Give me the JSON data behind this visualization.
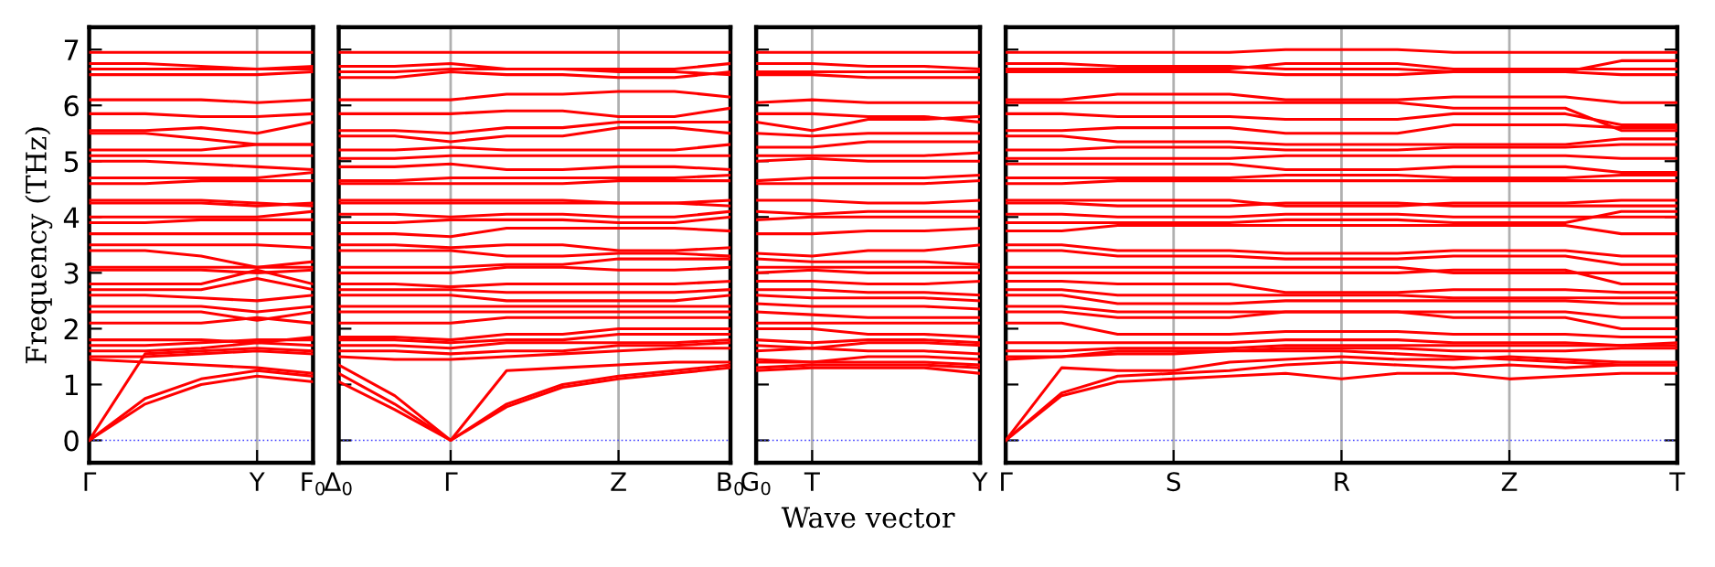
{
  "chart_data": [
    {
      "type": "line",
      "ylabel": "Frequency (THz)",
      "categories": [
        "Γ",
        null,
        null,
        "Y",
        "F$_{0}$"
      ],
      "ylim": [
        -0.4,
        7.4
      ],
      "yticks": [
        0,
        1,
        2,
        3,
        4,
        5,
        6,
        7
      ],
      "line_style": "solid",
      "ref_lines": [
        {
          "axis": "y",
          "value": 0,
          "color": "#4040ff",
          "line_style": "dotted"
        },
        {
          "axis": "x",
          "value": "Y",
          "color": "#b0b0b0",
          "line_style": "solid"
        }
      ],
      "series": [
        {
          "color": "#ff0000",
          "values": [
            0,
            0.65,
            1.0,
            1.15,
            1.05
          ]
        },
        {
          "color": "#ff0000",
          "values": [
            0,
            0.75,
            1.1,
            1.25,
            1.15
          ]
        },
        {
          "color": "#ff0000",
          "values": [
            0,
            1.55,
            1.6,
            1.65,
            1.6
          ]
        },
        {
          "color": "#ff0000",
          "values": [
            1.45,
            1.4,
            1.35,
            1.3,
            1.2
          ]
        },
        {
          "color": "#ff0000",
          "values": [
            1.5,
            1.5,
            1.55,
            1.6,
            1.55
          ]
        },
        {
          "color": "#ff0000",
          "values": [
            1.6,
            1.6,
            1.65,
            1.75,
            1.7
          ]
        },
        {
          "color": "#ff0000",
          "values": [
            1.7,
            1.7,
            1.75,
            1.8,
            1.8
          ]
        },
        {
          "color": "#ff0000",
          "values": [
            1.8,
            1.8,
            1.8,
            1.75,
            1.85
          ]
        },
        {
          "color": "#ff0000",
          "values": [
            2.1,
            2.1,
            2.1,
            2.2,
            2.1
          ]
        },
        {
          "color": "#ff0000",
          "values": [
            2.3,
            2.3,
            2.3,
            2.15,
            2.3
          ]
        },
        {
          "color": "#ff0000",
          "values": [
            2.4,
            2.4,
            2.4,
            2.3,
            2.4
          ]
        },
        {
          "color": "#ff0000",
          "values": [
            2.6,
            2.6,
            2.55,
            2.5,
            2.6
          ]
        },
        {
          "color": "#ff0000",
          "values": [
            2.7,
            2.7,
            2.7,
            2.9,
            2.7
          ]
        },
        {
          "color": "#ff0000",
          "values": [
            2.8,
            2.8,
            2.8,
            3.05,
            2.8
          ]
        },
        {
          "color": "#ff0000",
          "values": [
            3.05,
            3.05,
            3.05,
            3.0,
            3.05
          ]
        },
        {
          "color": "#ff0000",
          "values": [
            3.1,
            3.1,
            3.1,
            3.1,
            3.2
          ]
        },
        {
          "color": "#ff0000",
          "values": [
            3.4,
            3.4,
            3.3,
            3.1,
            3.1
          ]
        },
        {
          "color": "#ff0000",
          "values": [
            3.5,
            3.5,
            3.5,
            3.5,
            3.45
          ]
        },
        {
          "color": "#ff0000",
          "values": [
            3.7,
            3.7,
            3.7,
            3.7,
            3.7
          ]
        },
        {
          "color": "#ff0000",
          "values": [
            3.9,
            3.9,
            3.95,
            3.95,
            3.95
          ]
        },
        {
          "color": "#ff0000",
          "values": [
            4.0,
            4.0,
            4.0,
            4.0,
            4.1
          ]
        },
        {
          "color": "#ff0000",
          "values": [
            4.25,
            4.25,
            4.25,
            4.2,
            4.25
          ]
        },
        {
          "color": "#ff0000",
          "values": [
            4.3,
            4.3,
            4.3,
            4.25,
            4.2
          ]
        },
        {
          "color": "#ff0000",
          "values": [
            4.6,
            4.6,
            4.65,
            4.65,
            4.65
          ]
        },
        {
          "color": "#ff0000",
          "values": [
            4.7,
            4.7,
            4.7,
            4.7,
            4.8
          ]
        },
        {
          "color": "#ff0000",
          "values": [
            5.0,
            5.0,
            4.95,
            4.9,
            4.85
          ]
        },
        {
          "color": "#ff0000",
          "values": [
            5.1,
            5.1,
            5.1,
            5.1,
            5.1
          ]
        },
        {
          "color": "#ff0000",
          "values": [
            5.2,
            5.2,
            5.2,
            5.3,
            5.3
          ]
        },
        {
          "color": "#ff0000",
          "values": [
            5.5,
            5.5,
            5.4,
            5.3,
            5.3
          ]
        },
        {
          "color": "#ff0000",
          "values": [
            5.55,
            5.55,
            5.6,
            5.5,
            5.7
          ]
        },
        {
          "color": "#ff0000",
          "values": [
            5.85,
            5.85,
            5.8,
            5.8,
            5.85
          ]
        },
        {
          "color": "#ff0000",
          "values": [
            6.1,
            6.1,
            6.1,
            6.05,
            6.1
          ]
        },
        {
          "color": "#ff0000",
          "values": [
            6.55,
            6.55,
            6.55,
            6.55,
            6.6
          ]
        },
        {
          "color": "#ff0000",
          "values": [
            6.65,
            6.65,
            6.65,
            6.65,
            6.65
          ]
        },
        {
          "color": "#ff0000",
          "values": [
            6.75,
            6.75,
            6.7,
            6.65,
            6.7
          ]
        },
        {
          "color": "#ff0000",
          "values": [
            6.95,
            6.95,
            6.95,
            6.95,
            6.95
          ]
        }
      ]
    },
    {
      "type": "line",
      "categories": [
        "Δ$_{0}$",
        null,
        "Γ",
        null,
        null,
        "Z",
        null,
        "B$_{0}$"
      ],
      "ylim": [
        -0.4,
        7.4
      ],
      "yticks": [
        {
          "value": 0,
          "label": null
        },
        {
          "value": 1,
          "label": null
        },
        {
          "value": 2,
          "label": null
        },
        {
          "value": 3,
          "label": null
        },
        {
          "value": 4,
          "label": null
        },
        {
          "value": 5,
          "label": null
        },
        {
          "value": 6,
          "label": null
        },
        {
          "value": 7,
          "label": null
        }
      ],
      "tick_labels": "x",
      "grid": "x",
      "line_style": "solid",
      "ref_lines": [
        {
          "axis": "y",
          "value": 0,
          "color": "#4040ff",
          "line_style": "dotted"
        }
      ],
      "series": [
        {
          "color": "#ff0000",
          "values": [
            1.05,
            0.55,
            0,
            0.6,
            0.95,
            1.1,
            1.2,
            1.3
          ]
        },
        {
          "color": "#ff0000",
          "values": [
            1.2,
            0.65,
            0,
            0.65,
            1.0,
            1.15,
            1.25,
            1.35
          ]
        },
        {
          "color": "#ff0000",
          "values": [
            1.35,
            0.8,
            0,
            1.25,
            1.3,
            1.35,
            1.4,
            1.4
          ]
        },
        {
          "color": "#ff0000",
          "values": [
            1.5,
            1.45,
            1.45,
            1.5,
            1.55,
            1.6,
            1.65,
            1.65
          ]
        },
        {
          "color": "#ff0000",
          "values": [
            1.6,
            1.6,
            1.55,
            1.6,
            1.6,
            1.7,
            1.7,
            1.75
          ]
        },
        {
          "color": "#ff0000",
          "values": [
            1.7,
            1.7,
            1.65,
            1.75,
            1.75,
            1.75,
            1.75,
            1.8
          ]
        },
        {
          "color": "#ff0000",
          "values": [
            1.8,
            1.8,
            1.75,
            1.8,
            1.8,
            1.9,
            1.9,
            1.9
          ]
        },
        {
          "color": "#ff0000",
          "values": [
            1.85,
            1.85,
            1.8,
            1.9,
            1.9,
            2.0,
            2.0,
            2.0
          ]
        },
        {
          "color": "#ff0000",
          "values": [
            2.1,
            2.1,
            2.1,
            2.2,
            2.2,
            2.2,
            2.2,
            2.2
          ]
        },
        {
          "color": "#ff0000",
          "values": [
            2.3,
            2.3,
            2.3,
            2.3,
            2.3,
            2.3,
            2.3,
            2.3
          ]
        },
        {
          "color": "#ff0000",
          "values": [
            2.4,
            2.4,
            2.4,
            2.4,
            2.4,
            2.4,
            2.4,
            2.4
          ]
        },
        {
          "color": "#ff0000",
          "values": [
            2.6,
            2.6,
            2.6,
            2.5,
            2.5,
            2.5,
            2.5,
            2.6
          ]
        },
        {
          "color": "#ff0000",
          "values": [
            2.7,
            2.7,
            2.7,
            2.65,
            2.65,
            2.65,
            2.65,
            2.7
          ]
        },
        {
          "color": "#ff0000",
          "values": [
            2.8,
            2.8,
            2.75,
            2.8,
            2.8,
            2.8,
            2.8,
            2.85
          ]
        },
        {
          "color": "#ff0000",
          "values": [
            3.0,
            3.0,
            3.0,
            3.1,
            3.1,
            3.05,
            3.05,
            3.1
          ]
        },
        {
          "color": "#ff0000",
          "values": [
            3.1,
            3.1,
            3.1,
            3.15,
            3.15,
            3.25,
            3.25,
            3.25
          ]
        },
        {
          "color": "#ff0000",
          "values": [
            3.4,
            3.4,
            3.4,
            3.3,
            3.3,
            3.35,
            3.35,
            3.3
          ]
        },
        {
          "color": "#ff0000",
          "values": [
            3.5,
            3.5,
            3.45,
            3.5,
            3.5,
            3.4,
            3.4,
            3.45
          ]
        },
        {
          "color": "#ff0000",
          "values": [
            3.7,
            3.7,
            3.65,
            3.8,
            3.8,
            3.8,
            3.8,
            3.75
          ]
        },
        {
          "color": "#ff0000",
          "values": [
            3.9,
            3.9,
            3.95,
            3.95,
            3.95,
            3.9,
            3.9,
            4.0
          ]
        },
        {
          "color": "#ff0000",
          "values": [
            4.05,
            4.05,
            4.0,
            4.05,
            4.05,
            4.0,
            4.0,
            4.1
          ]
        },
        {
          "color": "#ff0000",
          "values": [
            4.25,
            4.25,
            4.25,
            4.25,
            4.25,
            4.25,
            4.25,
            4.3
          ]
        },
        {
          "color": "#ff0000",
          "values": [
            4.3,
            4.3,
            4.3,
            4.3,
            4.3,
            4.25,
            4.25,
            4.2
          ]
        },
        {
          "color": "#ff0000",
          "values": [
            4.6,
            4.6,
            4.6,
            4.6,
            4.6,
            4.65,
            4.65,
            4.65
          ]
        },
        {
          "color": "#ff0000",
          "values": [
            4.65,
            4.65,
            4.7,
            4.7,
            4.7,
            4.7,
            4.7,
            4.75
          ]
        },
        {
          "color": "#ff0000",
          "values": [
            4.9,
            4.9,
            4.95,
            4.85,
            4.85,
            4.9,
            4.9,
            4.85
          ]
        },
        {
          "color": "#ff0000",
          "values": [
            5.05,
            5.05,
            5.1,
            5.1,
            5.1,
            5.1,
            5.1,
            5.1
          ]
        },
        {
          "color": "#ff0000",
          "values": [
            5.2,
            5.2,
            5.25,
            5.2,
            5.2,
            5.2,
            5.2,
            5.3
          ]
        },
        {
          "color": "#ff0000",
          "values": [
            5.45,
            5.45,
            5.35,
            5.45,
            5.45,
            5.6,
            5.6,
            5.5
          ]
        },
        {
          "color": "#ff0000",
          "values": [
            5.55,
            5.55,
            5.5,
            5.6,
            5.6,
            5.7,
            5.7,
            5.7
          ]
        },
        {
          "color": "#ff0000",
          "values": [
            5.85,
            5.85,
            5.85,
            5.9,
            5.9,
            5.8,
            5.8,
            5.95
          ]
        },
        {
          "color": "#ff0000",
          "values": [
            6.1,
            6.1,
            6.1,
            6.2,
            6.2,
            6.25,
            6.25,
            6.15
          ]
        },
        {
          "color": "#ff0000",
          "values": [
            6.5,
            6.5,
            6.6,
            6.55,
            6.55,
            6.5,
            6.5,
            6.6
          ]
        },
        {
          "color": "#ff0000",
          "values": [
            6.6,
            6.6,
            6.65,
            6.65,
            6.65,
            6.65,
            6.65,
            6.75
          ]
        },
        {
          "color": "#ff0000",
          "values": [
            6.7,
            6.7,
            6.75,
            6.65,
            6.65,
            6.6,
            6.6,
            6.55
          ]
        },
        {
          "color": "#ff0000",
          "values": [
            6.95,
            6.95,
            6.95,
            6.95,
            6.95,
            6.95,
            6.95,
            6.95
          ]
        }
      ]
    },
    {
      "type": "line",
      "xlabel": "Wave vector",
      "categories": [
        "G$_{0}$",
        "T",
        null,
        null,
        "Y"
      ],
      "ylim": [
        -0.4,
        7.4
      ],
      "yticks": [
        {
          "value": 0,
          "label": null
        },
        {
          "value": 1,
          "label": null
        },
        {
          "value": 2,
          "label": null
        },
        {
          "value": 3,
          "label": null
        },
        {
          "value": 4,
          "label": null
        },
        {
          "value": 5,
          "label": null
        },
        {
          "value": 6,
          "label": null
        },
        {
          "value": 7,
          "label": null
        }
      ],
      "tick_labels": "x",
      "line_style": "solid",
      "ref_lines": [
        {
          "axis": "y",
          "value": 0,
          "color": "#4040ff",
          "line_style": "dotted"
        },
        {
          "axis": "x",
          "value": "T",
          "color": "#b0b0b0",
          "line_style": "solid"
        }
      ],
      "series": [
        {
          "color": "#ff0000",
          "values": [
            1.25,
            1.3,
            1.3,
            1.3,
            1.2
          ]
        },
        {
          "color": "#ff0000",
          "values": [
            1.3,
            1.35,
            1.35,
            1.35,
            1.3
          ]
        },
        {
          "color": "#ff0000",
          "values": [
            1.4,
            1.4,
            1.4,
            1.4,
            1.35
          ]
        },
        {
          "color": "#ff0000",
          "values": [
            1.45,
            1.4,
            1.5,
            1.5,
            1.45
          ]
        },
        {
          "color": "#ff0000",
          "values": [
            1.6,
            1.65,
            1.6,
            1.6,
            1.55
          ]
        },
        {
          "color": "#ff0000",
          "values": [
            1.7,
            1.65,
            1.75,
            1.75,
            1.7
          ]
        },
        {
          "color": "#ff0000",
          "values": [
            1.8,
            1.75,
            1.8,
            1.8,
            1.75
          ]
        },
        {
          "color": "#ff0000",
          "values": [
            2.0,
            2.0,
            1.9,
            1.9,
            1.85
          ]
        },
        {
          "color": "#ff0000",
          "values": [
            2.1,
            2.1,
            2.1,
            2.1,
            2.1
          ]
        },
        {
          "color": "#ff0000",
          "values": [
            2.3,
            2.25,
            2.2,
            2.2,
            2.2
          ]
        },
        {
          "color": "#ff0000",
          "values": [
            2.45,
            2.4,
            2.4,
            2.4,
            2.35
          ]
        },
        {
          "color": "#ff0000",
          "values": [
            2.6,
            2.55,
            2.55,
            2.55,
            2.5
          ]
        },
        {
          "color": "#ff0000",
          "values": [
            2.7,
            2.7,
            2.65,
            2.65,
            2.6
          ]
        },
        {
          "color": "#ff0000",
          "values": [
            2.85,
            2.85,
            2.8,
            2.8,
            2.85
          ]
        },
        {
          "color": "#ff0000",
          "values": [
            3.0,
            3.05,
            3.0,
            3.0,
            3.0
          ]
        },
        {
          "color": "#ff0000",
          "values": [
            3.1,
            3.1,
            3.1,
            3.1,
            3.1
          ]
        },
        {
          "color": "#ff0000",
          "values": [
            3.25,
            3.2,
            3.2,
            3.2,
            3.15
          ]
        },
        {
          "color": "#ff0000",
          "values": [
            3.35,
            3.3,
            3.4,
            3.4,
            3.5
          ]
        },
        {
          "color": "#ff0000",
          "values": [
            3.7,
            3.7,
            3.75,
            3.75,
            3.8
          ]
        },
        {
          "color": "#ff0000",
          "values": [
            3.95,
            4.0,
            4.0,
            4.0,
            4.0
          ]
        },
        {
          "color": "#ff0000",
          "values": [
            4.1,
            4.05,
            4.1,
            4.1,
            4.1
          ]
        },
        {
          "color": "#ff0000",
          "values": [
            4.3,
            4.3,
            4.25,
            4.25,
            4.3
          ]
        },
        {
          "color": "#ff0000",
          "values": [
            4.6,
            4.6,
            4.6,
            4.6,
            4.65
          ]
        },
        {
          "color": "#ff0000",
          "values": [
            4.65,
            4.7,
            4.7,
            4.7,
            4.75
          ]
        },
        {
          "color": "#ff0000",
          "values": [
            5.0,
            5.05,
            5.0,
            5.0,
            5.0
          ]
        },
        {
          "color": "#ff0000",
          "values": [
            5.1,
            5.1,
            5.1,
            5.1,
            5.15
          ]
        },
        {
          "color": "#ff0000",
          "values": [
            5.25,
            5.25,
            5.35,
            5.35,
            5.35
          ]
        },
        {
          "color": "#ff0000",
          "values": [
            5.5,
            5.45,
            5.5,
            5.5,
            5.5
          ]
        },
        {
          "color": "#ff0000",
          "values": [
            5.7,
            5.55,
            5.75,
            5.75,
            5.8
          ]
        },
        {
          "color": "#ff0000",
          "values": [
            5.85,
            5.85,
            5.8,
            5.8,
            5.7
          ]
        },
        {
          "color": "#ff0000",
          "values": [
            6.05,
            6.1,
            6.05,
            6.05,
            6.05
          ]
        },
        {
          "color": "#ff0000",
          "values": [
            6.55,
            6.55,
            6.5,
            6.5,
            6.5
          ]
        },
        {
          "color": "#ff0000",
          "values": [
            6.6,
            6.6,
            6.6,
            6.6,
            6.6
          ]
        },
        {
          "color": "#ff0000",
          "values": [
            6.75,
            6.75,
            6.7,
            6.7,
            6.65
          ]
        },
        {
          "color": "#ff0000",
          "values": [
            6.95,
            6.95,
            6.95,
            6.95,
            6.95
          ]
        }
      ]
    },
    {
      "type": "line",
      "categories": [
        "Γ",
        null,
        null,
        "S",
        null,
        null,
        "R",
        null,
        null,
        "Z",
        null,
        null,
        "T"
      ],
      "ylim": [
        -0.4,
        7.4
      ],
      "yticks": [
        {
          "value": 0,
          "label": null
        },
        {
          "value": 1,
          "label": null
        },
        {
          "value": 2,
          "label": null
        },
        {
          "value": 3,
          "label": null
        },
        {
          "value": 4,
          "label": null
        },
        {
          "value": 5,
          "label": null
        },
        {
          "value": 6,
          "label": null
        },
        {
          "value": 7,
          "label": null
        }
      ],
      "tick_labels": "x",
      "grid": "x",
      "line_style": "solid",
      "ref_lines": [
        {
          "axis": "y",
          "value": 0,
          "color": "#4040ff",
          "line_style": "dotted"
        }
      ],
      "series": [
        {
          "color": "#ff0000",
          "values": [
            0,
            0.8,
            1.05,
            1.1,
            1.15,
            1.2,
            1.1,
            1.2,
            1.2,
            1.1,
            1.15,
            1.2,
            1.2
          ]
        },
        {
          "color": "#ff0000",
          "values": [
            0,
            0.85,
            1.15,
            1.2,
            1.25,
            1.35,
            1.4,
            1.35,
            1.3,
            1.35,
            1.3,
            1.35,
            1.35
          ]
        },
        {
          "color": "#ff0000",
          "values": [
            0,
            1.3,
            1.25,
            1.25,
            1.4,
            1.45,
            1.5,
            1.45,
            1.45,
            1.5,
            1.45,
            1.4,
            1.4
          ]
        },
        {
          "color": "#ff0000",
          "values": [
            1.45,
            1.5,
            1.55,
            1.55,
            1.6,
            1.6,
            1.6,
            1.55,
            1.5,
            1.45,
            1.4,
            1.35,
            1.35
          ]
        },
        {
          "color": "#ff0000",
          "values": [
            1.5,
            1.5,
            1.6,
            1.6,
            1.6,
            1.65,
            1.65,
            1.65,
            1.6,
            1.6,
            1.6,
            1.65,
            1.65
          ]
        },
        {
          "color": "#ff0000",
          "values": [
            1.6,
            1.6,
            1.65,
            1.65,
            1.65,
            1.7,
            1.7,
            1.7,
            1.7,
            1.7,
            1.7,
            1.7,
            1.7
          ]
        },
        {
          "color": "#ff0000",
          "values": [
            1.75,
            1.75,
            1.75,
            1.75,
            1.75,
            1.8,
            1.8,
            1.8,
            1.75,
            1.75,
            1.75,
            1.7,
            1.75
          ]
        },
        {
          "color": "#ff0000",
          "values": [
            2.1,
            2.1,
            1.9,
            1.9,
            1.9,
            1.95,
            1.95,
            1.95,
            1.9,
            1.9,
            1.9,
            1.85,
            1.85
          ]
        },
        {
          "color": "#ff0000",
          "values": [
            2.3,
            2.3,
            2.2,
            2.2,
            2.2,
            2.3,
            2.3,
            2.3,
            2.2,
            2.2,
            2.2,
            2.0,
            2.0
          ]
        },
        {
          "color": "#ff0000",
          "values": [
            2.4,
            2.4,
            2.3,
            2.3,
            2.3,
            2.3,
            2.3,
            2.3,
            2.3,
            2.3,
            2.3,
            2.2,
            2.2
          ]
        },
        {
          "color": "#ff0000",
          "values": [
            2.6,
            2.6,
            2.45,
            2.45,
            2.45,
            2.5,
            2.5,
            2.5,
            2.5,
            2.5,
            2.5,
            2.45,
            2.45
          ]
        },
        {
          "color": "#ff0000",
          "values": [
            2.7,
            2.7,
            2.6,
            2.6,
            2.6,
            2.6,
            2.6,
            2.6,
            2.55,
            2.55,
            2.55,
            2.55,
            2.55
          ]
        },
        {
          "color": "#ff0000",
          "values": [
            2.85,
            2.85,
            2.8,
            2.8,
            2.8,
            2.65,
            2.65,
            2.65,
            2.7,
            2.7,
            2.7,
            2.65,
            2.65
          ]
        },
        {
          "color": "#ff0000",
          "values": [
            3.0,
            3.0,
            3.0,
            3.0,
            3.0,
            3.0,
            3.0,
            3.0,
            3.05,
            3.05,
            3.05,
            2.8,
            2.8
          ]
        },
        {
          "color": "#ff0000",
          "values": [
            3.1,
            3.1,
            3.1,
            3.1,
            3.1,
            3.1,
            3.1,
            3.1,
            3.0,
            3.0,
            3.0,
            3.0,
            3.0
          ]
        },
        {
          "color": "#ff0000",
          "values": [
            3.4,
            3.4,
            3.3,
            3.3,
            3.3,
            3.25,
            3.25,
            3.25,
            3.3,
            3.3,
            3.3,
            3.15,
            3.15
          ]
        },
        {
          "color": "#ff0000",
          "values": [
            3.5,
            3.5,
            3.4,
            3.4,
            3.4,
            3.35,
            3.35,
            3.35,
            3.4,
            3.4,
            3.4,
            3.3,
            3.3
          ]
        },
        {
          "color": "#ff0000",
          "values": [
            3.75,
            3.75,
            3.85,
            3.85,
            3.85,
            3.85,
            3.85,
            3.85,
            3.85,
            3.85,
            3.85,
            3.7,
            3.7
          ]
        },
        {
          "color": "#ff0000",
          "values": [
            3.9,
            3.9,
            3.9,
            3.9,
            3.9,
            3.95,
            3.95,
            3.95,
            3.9,
            3.9,
            3.9,
            4.1,
            4.1
          ]
        },
        {
          "color": "#ff0000",
          "values": [
            4.05,
            4.05,
            4.0,
            4.0,
            4.0,
            4.05,
            4.05,
            4.05,
            4.0,
            4.0,
            4.0,
            4.0,
            4.0
          ]
        },
        {
          "color": "#ff0000",
          "values": [
            4.25,
            4.25,
            4.2,
            4.2,
            4.2,
            4.25,
            4.25,
            4.25,
            4.2,
            4.2,
            4.2,
            4.2,
            4.2
          ]
        },
        {
          "color": "#ff0000",
          "values": [
            4.3,
            4.3,
            4.3,
            4.3,
            4.3,
            4.2,
            4.2,
            4.2,
            4.25,
            4.25,
            4.25,
            4.3,
            4.3
          ]
        },
        {
          "color": "#ff0000",
          "values": [
            4.6,
            4.6,
            4.65,
            4.65,
            4.65,
            4.65,
            4.65,
            4.65,
            4.65,
            4.65,
            4.65,
            4.65,
            4.65
          ]
        },
        {
          "color": "#ff0000",
          "values": [
            4.7,
            4.7,
            4.7,
            4.7,
            4.7,
            4.75,
            4.75,
            4.75,
            4.7,
            4.7,
            4.7,
            4.75,
            4.75
          ]
        },
        {
          "color": "#ff0000",
          "values": [
            4.95,
            4.95,
            4.95,
            4.95,
            4.95,
            4.85,
            4.85,
            4.85,
            4.9,
            4.9,
            4.9,
            4.8,
            4.8
          ]
        },
        {
          "color": "#ff0000",
          "values": [
            5.05,
            5.05,
            5.05,
            5.05,
            5.05,
            5.1,
            5.1,
            5.1,
            5.1,
            5.1,
            5.1,
            5.05,
            5.05
          ]
        },
        {
          "color": "#ff0000",
          "values": [
            5.2,
            5.2,
            5.25,
            5.25,
            5.25,
            5.2,
            5.2,
            5.2,
            5.25,
            5.25,
            5.25,
            5.3,
            5.3
          ]
        },
        {
          "color": "#ff0000",
          "values": [
            5.45,
            5.45,
            5.35,
            5.35,
            5.35,
            5.3,
            5.3,
            5.3,
            5.3,
            5.3,
            5.3,
            5.4,
            5.4
          ]
        },
        {
          "color": "#ff0000",
          "values": [
            5.55,
            5.55,
            5.6,
            5.6,
            5.6,
            5.5,
            5.5,
            5.5,
            5.65,
            5.65,
            5.65,
            5.6,
            5.6
          ]
        },
        {
          "color": "#ff0000",
          "values": [
            5.85,
            5.85,
            5.8,
            5.8,
            5.8,
            5.75,
            5.75,
            5.75,
            5.85,
            5.85,
            5.85,
            5.65,
            5.65
          ]
        },
        {
          "color": "#ff0000",
          "values": [
            6.05,
            6.05,
            6.05,
            6.05,
            6.05,
            6.05,
            6.05,
            6.05,
            5.95,
            5.95,
            5.95,
            5.55,
            5.55
          ]
        },
        {
          "color": "#ff0000",
          "values": [
            6.1,
            6.1,
            6.2,
            6.2,
            6.2,
            6.1,
            6.1,
            6.1,
            6.15,
            6.15,
            6.15,
            6.05,
            6.05
          ]
        },
        {
          "color": "#ff0000",
          "values": [
            6.6,
            6.6,
            6.6,
            6.6,
            6.6,
            6.55,
            6.55,
            6.55,
            6.6,
            6.6,
            6.6,
            6.55,
            6.55
          ]
        },
        {
          "color": "#ff0000",
          "values": [
            6.65,
            6.65,
            6.65,
            6.65,
            6.65,
            6.75,
            6.75,
            6.75,
            6.65,
            6.65,
            6.65,
            6.65,
            6.65
          ]
        },
        {
          "color": "#ff0000",
          "values": [
            6.75,
            6.75,
            6.7,
            6.7,
            6.7,
            6.65,
            6.65,
            6.65,
            6.6,
            6.6,
            6.6,
            6.8,
            6.8
          ]
        },
        {
          "color": "#ff0000",
          "values": [
            6.95,
            6.95,
            6.95,
            6.95,
            6.95,
            7.0,
            7.0,
            7.0,
            6.95,
            6.95,
            6.95,
            6.95,
            6.95
          ]
        }
      ]
    }
  ]
}
